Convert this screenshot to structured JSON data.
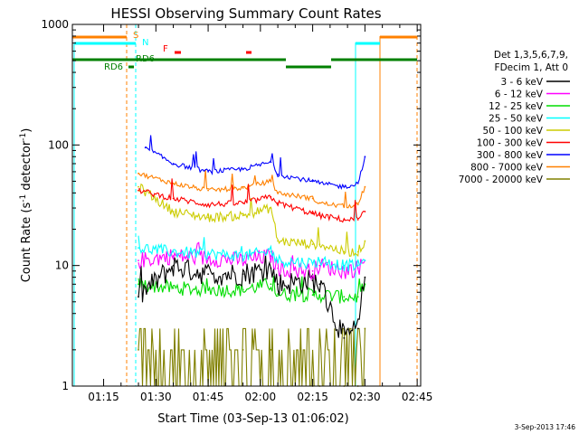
{
  "colors": {
    "background": "#ffffff",
    "axis": "#000000",
    "bands": [
      "#000000",
      "#ff00ff",
      "#00dd00",
      "#00ffff",
      "#cccc00",
      "#ff0000",
      "#0000ff",
      "#ff8000",
      "#808000"
    ],
    "flag_orange": "#ff8000",
    "flag_cyan": "#00ffff",
    "flag_green": "#008000",
    "flag_red": "#ff0000"
  },
  "chart_data": {
    "type": "line",
    "title": "HESSI Observing Summary Count Rates",
    "xlabel": "Start Time (03-Sep-13 01:06:02)",
    "ylabel_main": "Count Rate (s",
    "ylabel_sup1": "-1",
    "ylabel_mid": " detector",
    "ylabel_sup2": "-1",
    "ylabel_end": ")",
    "y_scale": "log",
    "xlim": [
      "01:06:02",
      "02:46:00"
    ],
    "ylim": [
      1,
      1000
    ],
    "x_ticks": [
      "01:15",
      "01:30",
      "01:45",
      "02:00",
      "02:15",
      "02:30",
      "02:45"
    ],
    "y_ticks": [
      "1",
      "10",
      "100",
      "1000"
    ],
    "legend_header": [
      "Det 1,3,5,6,7,9,",
      "FDecim 1, Att 0"
    ],
    "legend_placement": "right",
    "series": [
      {
        "name": "3 - 6 keV",
        "x": [
          "01:25",
          "01:35",
          "01:45",
          "01:55",
          "02:03",
          "02:05",
          "02:15",
          "02:17",
          "02:24",
          "02:28",
          "02:30"
        ],
        "y": [
          5.5,
          10,
          8.5,
          8.5,
          9.5,
          7,
          7.5,
          7,
          2.5,
          3,
          8
        ]
      },
      {
        "name": "6 - 12 keV",
        "x": [
          "01:25",
          "01:35",
          "01:45",
          "01:55",
          "02:03",
          "02:05",
          "02:15",
          "02:17",
          "02:24",
          "02:28",
          "02:30"
        ],
        "y": [
          11,
          12,
          11.5,
          11,
          12,
          9.5,
          9,
          10,
          9,
          9.5,
          11
        ]
      },
      {
        "name": "12 - 25 keV",
        "x": [
          "01:25",
          "01:35",
          "01:45",
          "01:55",
          "02:03",
          "02:05",
          "02:15",
          "02:17",
          "02:24",
          "02:28",
          "02:30"
        ],
        "y": [
          7,
          6.5,
          6.3,
          6.3,
          7,
          5.8,
          5.7,
          5.7,
          5.5,
          5.5,
          7
        ]
      },
      {
        "name": "25 - 50 keV",
        "x": [
          "01:25",
          "01:35",
          "01:45",
          "01:55",
          "02:03",
          "02:05",
          "02:15",
          "02:17",
          "02:24",
          "02:28",
          "02:30"
        ],
        "y": [
          14,
          13,
          12.5,
          12,
          13,
          11,
          10.5,
          11,
          10,
          10,
          11
        ]
      },
      {
        "name": "50 - 100 keV",
        "x": [
          "01:25",
          "01:35",
          "01:45",
          "01:55",
          "02:03",
          "02:05",
          "02:15",
          "02:17",
          "02:24",
          "02:28",
          "02:30"
        ],
        "y": [
          45,
          28,
          25,
          26,
          30,
          16,
          15,
          15,
          13,
          13,
          16
        ]
      },
      {
        "name": "100 - 300 keV",
        "x": [
          "01:25",
          "01:35",
          "01:45",
          "01:55",
          "02:03",
          "02:05",
          "02:15",
          "02:17",
          "02:24",
          "02:28",
          "02:30"
        ],
        "y": [
          42,
          36,
          32,
          33,
          37,
          33,
          27,
          26,
          24,
          24,
          28
        ]
      },
      {
        "name": "300 - 800 keV",
        "x": [
          "01:27",
          "01:35",
          "01:45",
          "01:55",
          "02:03",
          "02:05",
          "02:15",
          "02:17",
          "02:24",
          "02:28",
          "02:30"
        ],
        "y": [
          95,
          70,
          60,
          63,
          72,
          57,
          50,
          48,
          45,
          48,
          80
        ]
      },
      {
        "name": "800 - 7000 keV",
        "x": [
          "01:25",
          "01:35",
          "01:45",
          "01:55",
          "02:03",
          "02:05",
          "02:15",
          "02:17",
          "02:24",
          "02:28",
          "02:30"
        ],
        "y": [
          58,
          48,
          42,
          44,
          50,
          40,
          36,
          33,
          31,
          32,
          45
        ]
      },
      {
        "name": "7000 - 20000 keV",
        "x": [
          "01:25",
          "01:35",
          "01:45",
          "01:55",
          "02:03",
          "02:05",
          "02:15",
          "02:17",
          "02:24",
          "02:28",
          "02:30"
        ],
        "y": [
          2,
          1,
          1,
          2,
          2,
          1,
          1,
          1,
          1,
          1,
          3
        ]
      }
    ],
    "flag_labels": [
      {
        "text": "S",
        "color": "#ff8000"
      },
      {
        "text": "N",
        "color": "#00ffff"
      },
      {
        "text": "F",
        "color": "#ff0000"
      },
      {
        "text": "RD6",
        "color": "#008000"
      },
      {
        "text": "RD6",
        "color": "#008000"
      }
    ],
    "grid": false
  },
  "footer": {
    "date_stamp": "3-Sep-2013 17:46"
  }
}
